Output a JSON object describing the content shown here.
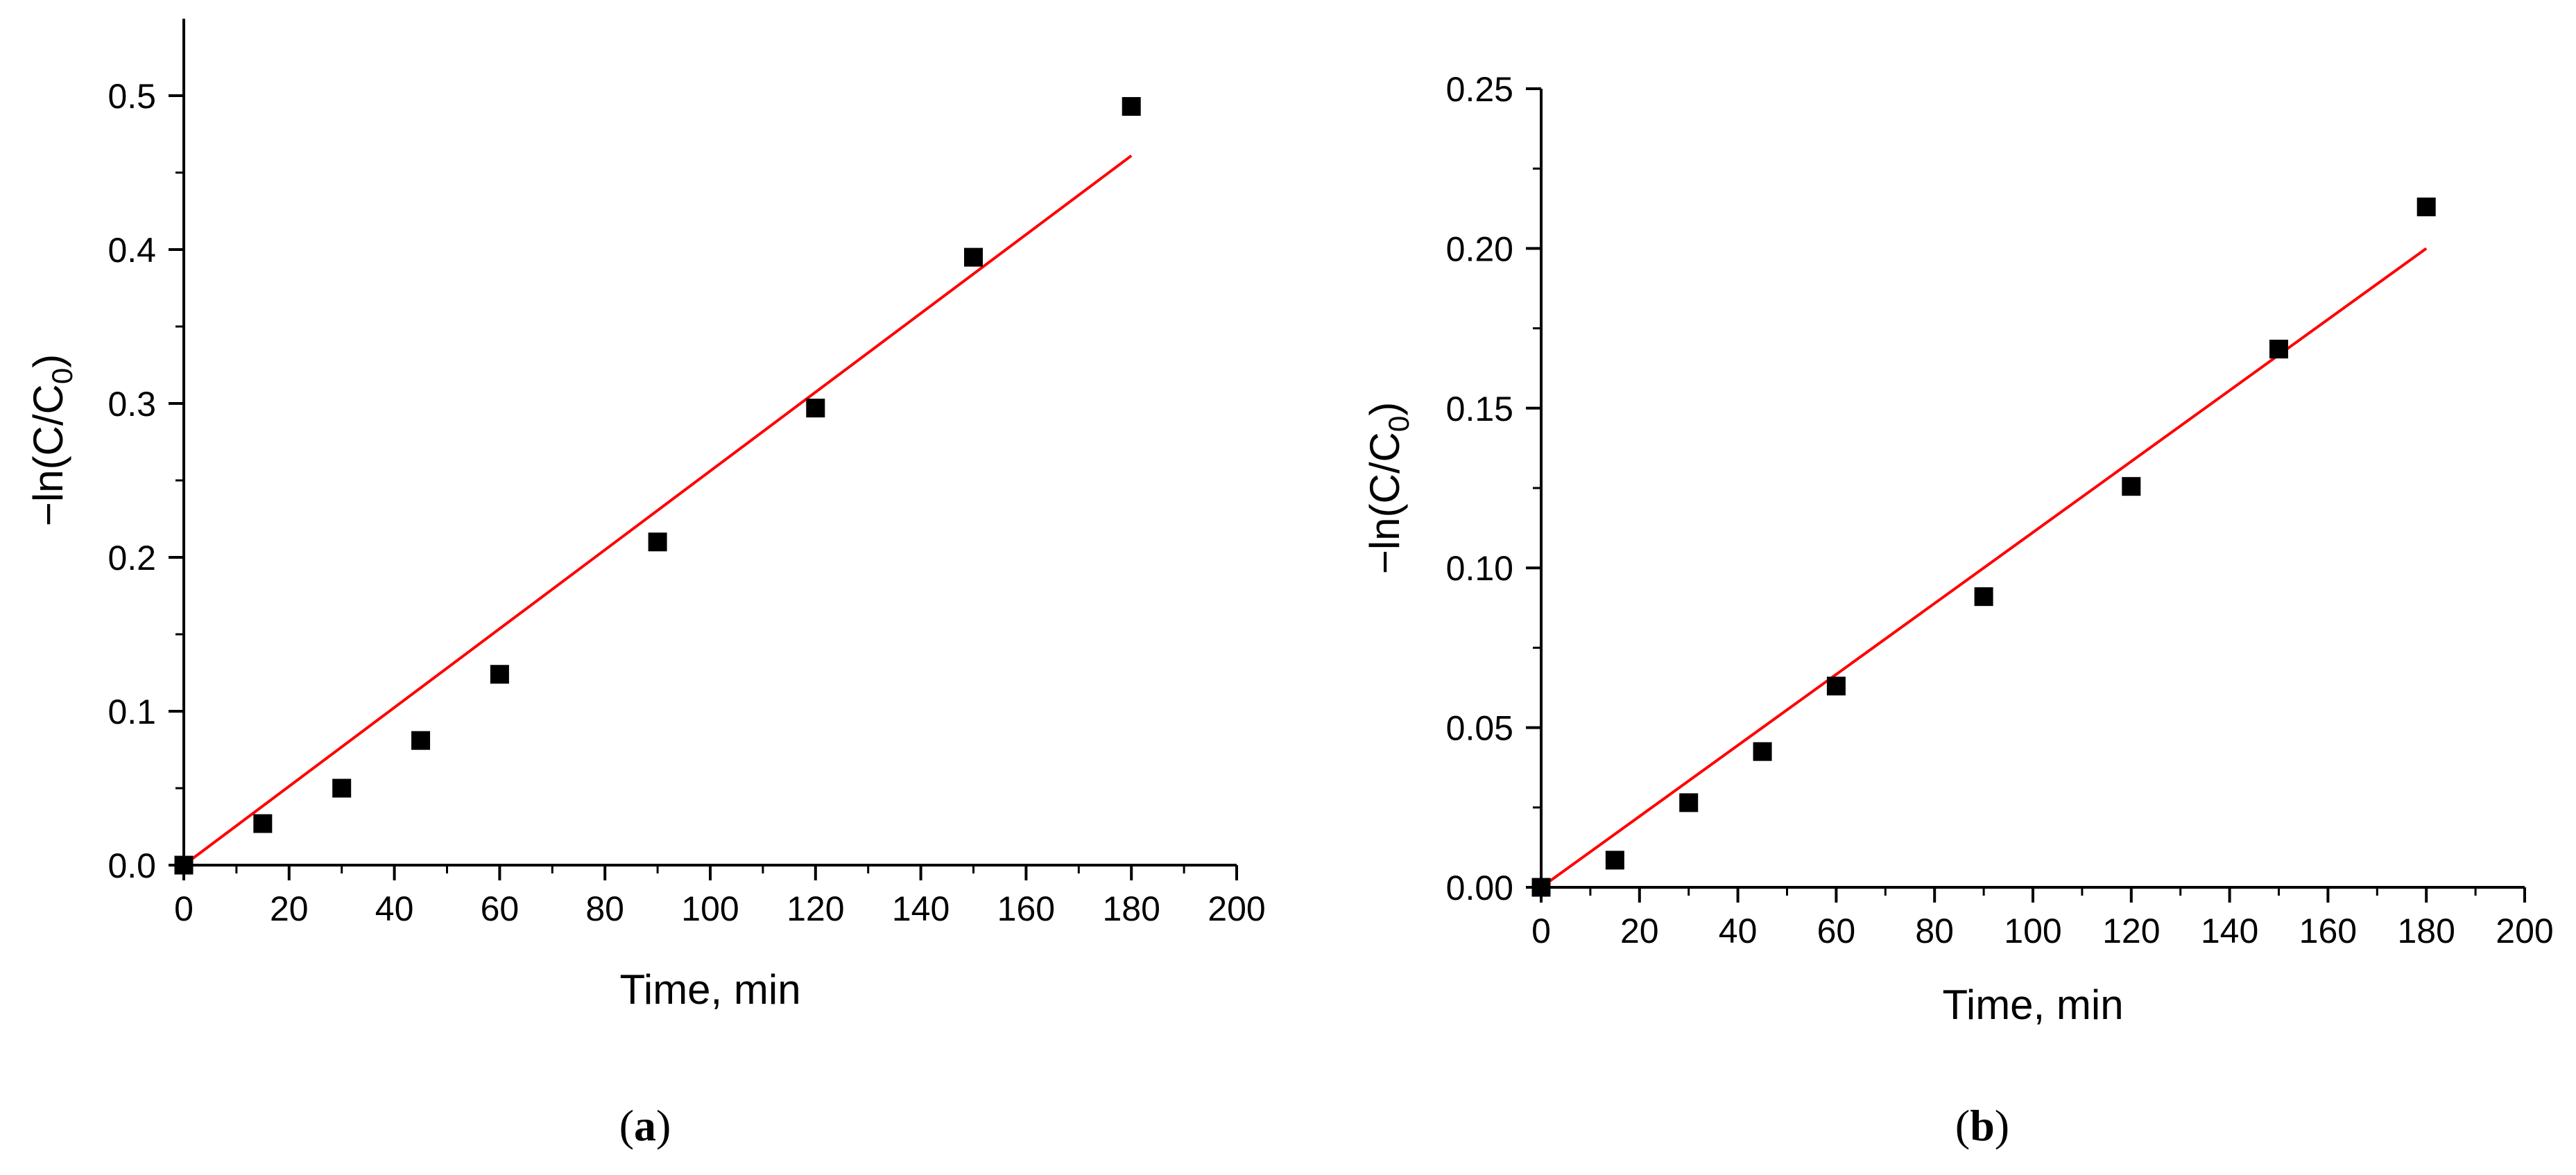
{
  "chart_data": [
    {
      "type": "scatter",
      "panel_label": "a",
      "xlabel": "Time, min",
      "ylabel_main": "−ln(C/C",
      "ylabel_sub": "0",
      "ylabel_close": ")",
      "xlim": [
        0,
        200
      ],
      "ylim": [
        0,
        0.55
      ],
      "xticks": [
        0,
        20,
        40,
        60,
        80,
        100,
        120,
        140,
        160,
        180,
        200
      ],
      "yticks": [
        "0.0",
        "0.1",
        "0.2",
        "0.3",
        "0.4",
        "0.5"
      ],
      "x": [
        0,
        15,
        30,
        45,
        60,
        90,
        120,
        150,
        180
      ],
      "y": [
        0,
        0.027,
        0.05,
        0.081,
        0.124,
        0.21,
        0.297,
        0.395,
        0.493
      ],
      "fit": {
        "x": [
          0,
          180
        ],
        "y": [
          0,
          0.461
        ]
      },
      "marker_color": "#000000",
      "fit_color": "#ff0000"
    },
    {
      "type": "scatter",
      "panel_label": "b",
      "xlabel": "Time, min",
      "ylabel_main": "−ln(C/C",
      "ylabel_sub": "0",
      "ylabel_close": ")",
      "xlim": [
        0,
        200
      ],
      "ylim": [
        0,
        0.25
      ],
      "xticks": [
        0,
        20,
        40,
        60,
        80,
        100,
        120,
        140,
        160,
        180,
        200
      ],
      "yticks": [
        "0.00",
        "0.05",
        "0.10",
        "0.15",
        "0.20",
        "0.25"
      ],
      "x": [
        0,
        15,
        30,
        45,
        60,
        90,
        120,
        150,
        180
      ],
      "y": [
        0,
        0.0085,
        0.0265,
        0.0425,
        0.063,
        0.091,
        0.1255,
        0.1685,
        0.213
      ],
      "fit": {
        "x": [
          0,
          180
        ],
        "y": [
          0,
          0.2
        ]
      },
      "marker_color": "#000000",
      "fit_color": "#ff0000"
    }
  ]
}
